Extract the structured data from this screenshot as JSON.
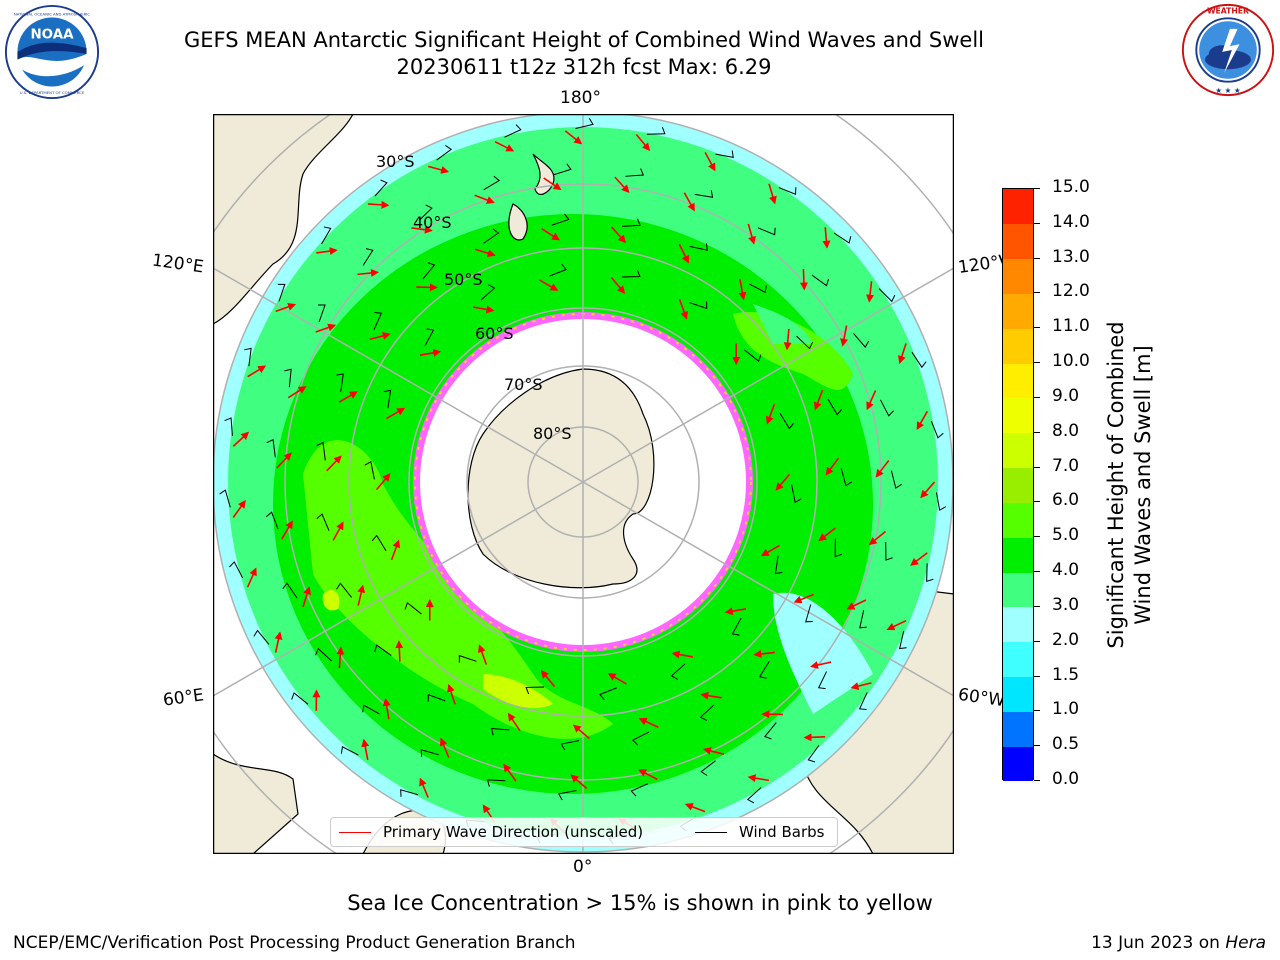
{
  "header": {
    "title_line1": "GEFS MEAN Antarctic Significant Height of Combined Wind Waves and Swell",
    "title_line2": "20230611 t12z 312h fcst   Max: 6.29"
  },
  "logos": {
    "left": "NOAA",
    "left_ring_text": "NATIONAL OCEANIC AND ATMOSPHERIC ADMINISTRATION · U.S. DEPARTMENT OF COMMERCE",
    "right_ring_text": "NATIONAL WEATHER SERVICE"
  },
  "map": {
    "longitude_labels": {
      "top": "180°",
      "bottom": "0°",
      "left_upper": "120°E",
      "left_lower": "60°E",
      "right_upper": "120°W",
      "right_lower": "60°W"
    },
    "latitude_labels": [
      "30°S",
      "40°S",
      "50°S",
      "60°S",
      "70°S",
      "80°S"
    ],
    "colors": {
      "land": "#efebd8",
      "ocean_edge": "#80ffff",
      "background": "#ffffff",
      "ice_pink": "#ff44ff",
      "ice_yellow": "#ffcc33",
      "arrow": "#ff0000",
      "barb": "#000000",
      "grid": "#b0b0b0"
    }
  },
  "colorbar": {
    "label_line1": "Significant Height of Combined",
    "label_line2": "Wind Waves and Swell [m]",
    "ticks": [
      "0.0",
      "0.5",
      "1.0",
      "1.5",
      "2.0",
      "3.0",
      "4.0",
      "5.0",
      "6.0",
      "7.0",
      "8.0",
      "9.0",
      "10.0",
      "11.0",
      "12.0",
      "13.0",
      "14.0",
      "15.0"
    ],
    "colors": [
      "#0000ff",
      "#0073ff",
      "#00e6ff",
      "#40ffff",
      "#a0ffff",
      "#40ff80",
      "#00ee00",
      "#55ff00",
      "#99ee00",
      "#ccff00",
      "#eeff00",
      "#ffee00",
      "#ffcc00",
      "#ffaa00",
      "#ff8800",
      "#ff5500",
      "#ff2200",
      "#ff0000"
    ]
  },
  "legend": {
    "arrow_label": "Primary Wave Direction (unscaled)",
    "barb_label": "Wind Barbs",
    "arrow_color": "#ff0000",
    "barb_color": "#000000"
  },
  "footer": {
    "subtitle": "Sea Ice Concentration > 15% is shown in pink to yellow",
    "left": "NCEP/EMC/Verification Post Processing Product Generation Branch",
    "right_date": "13 Jun 2023 on ",
    "right_host": "Hera"
  }
}
